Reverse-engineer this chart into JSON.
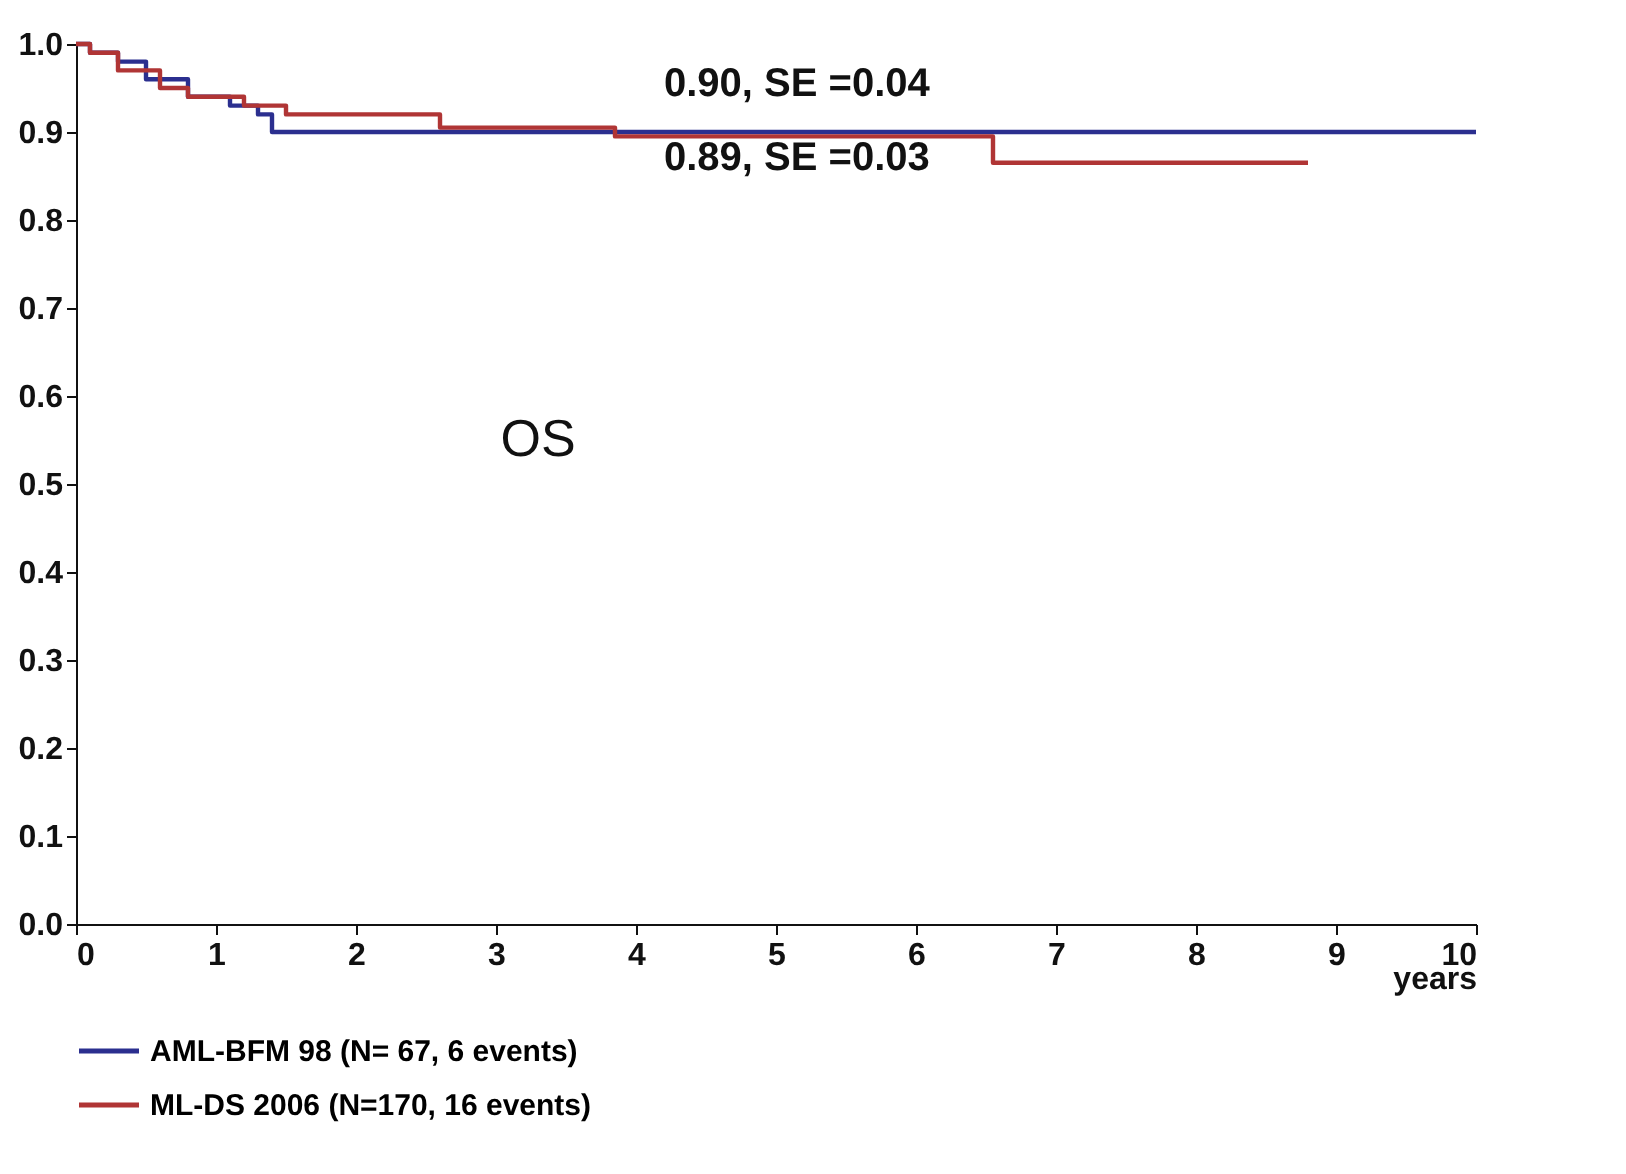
{
  "chart_data": {
    "type": "step",
    "xlabel": "years",
    "xlim": [
      0,
      10
    ],
    "xticks": [
      0,
      1,
      2,
      3,
      4,
      5,
      6,
      7,
      8,
      9,
      10
    ],
    "ylim": [
      0,
      1
    ],
    "yticks": [
      {
        "value": 0,
        "label": "0.0"
      },
      {
        "value": 0.1,
        "label": "0.1"
      },
      {
        "value": 0.2,
        "label": "0.2"
      },
      {
        "value": 0.3,
        "label": "0.3"
      },
      {
        "value": 0.4,
        "label": "0.4"
      },
      {
        "value": 0.5,
        "label": "0.5"
      },
      {
        "value": 0.6,
        "label": "0.6"
      },
      {
        "value": 0.7,
        "label": "0.7"
      },
      {
        "value": 0.8,
        "label": "0.8"
      },
      {
        "value": 0.9,
        "label": "0.9"
      },
      {
        "value": 1,
        "label": "1.0"
      }
    ],
    "series": [
      {
        "name": "AML-BFM 98 (N= 67, 6 events)",
        "color": "#2b2f8f",
        "x": [
          0,
          0.1,
          0.3,
          0.5,
          0.8,
          1.1,
          1.3,
          1.4,
          10
        ],
        "values": [
          1.0,
          0.99,
          0.98,
          0.96,
          0.94,
          0.93,
          0.92,
          0.9,
          0.9
        ]
      },
      {
        "name": "ML-DS 2006 (N=170, 16 events)",
        "color": "#b03535",
        "x": [
          0,
          0.1,
          0.3,
          0.6,
          0.8,
          1.2,
          1.5,
          2.6,
          3.85,
          6.55,
          8.8
        ],
        "values": [
          1.0,
          0.99,
          0.97,
          0.95,
          0.94,
          0.93,
          0.92,
          0.905,
          0.895,
          0.865,
          0.865
        ]
      }
    ],
    "annotations": [
      "0.90, SE =0.04",
      "0.89, SE =0.03",
      "OS"
    ],
    "legend": "bottom",
    "grid": false
  }
}
